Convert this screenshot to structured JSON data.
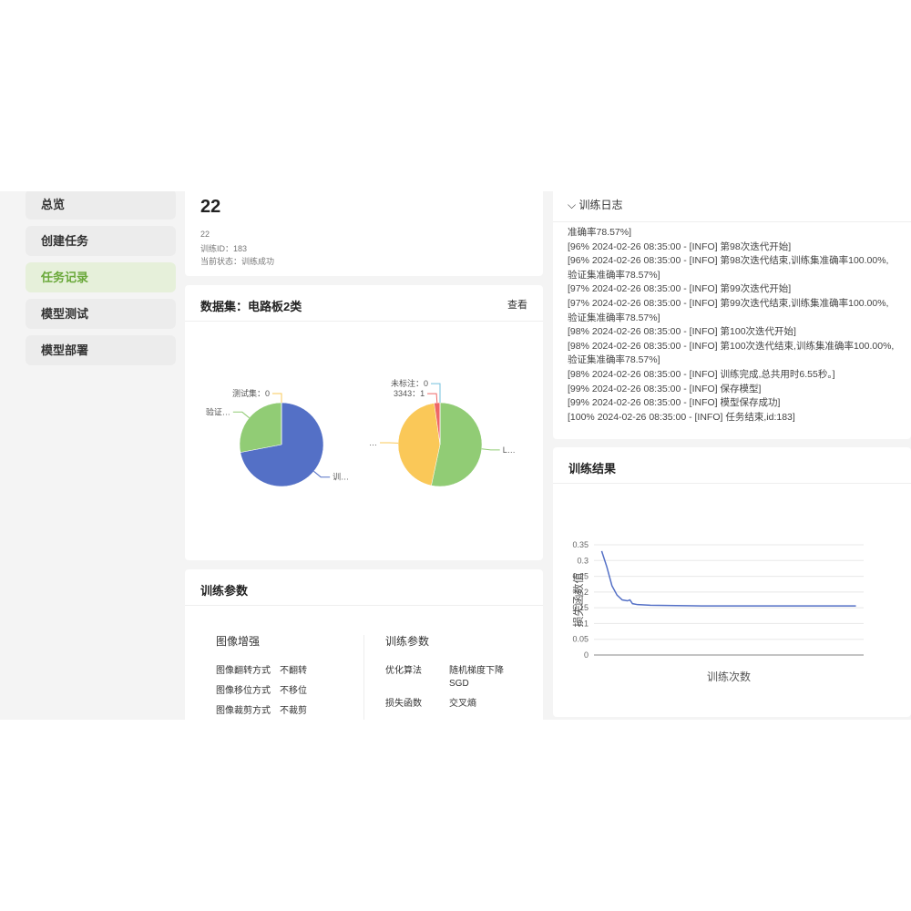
{
  "sidebar": {
    "items": [
      "总览",
      "创建任务",
      "任务记录",
      "模型测试",
      "模型部署"
    ],
    "active": 2
  },
  "task": {
    "title": "22",
    "name": "22",
    "id_line": "训练ID：183",
    "status_line": "当前状态：训练成功"
  },
  "dataset": {
    "title": "数据集：电路板2类",
    "link": "查看"
  },
  "log": {
    "title": "训练日志",
    "lines": [
      "准确率78.57%]",
      "[96% 2024-02-26 08:35:00 - [INFO] 第98次迭代开始]",
      "[96% 2024-02-26 08:35:00 - [INFO] 第98次迭代结束,训练集准确率100.00%,验证集准确率78.57%]",
      "[97% 2024-02-26 08:35:00 - [INFO] 第99次迭代开始]",
      "[97% 2024-02-26 08:35:00 - [INFO] 第99次迭代结束,训练集准确率100.00%,验证集准确率78.57%]",
      "[98% 2024-02-26 08:35:00 - [INFO] 第100次迭代开始]",
      "[98% 2024-02-26 08:35:00 - [INFO] 第100次迭代结束,训练集准确率100.00%,验证集准确率78.57%]",
      "[98% 2024-02-26 08:35:00 - [INFO] 训练完成,总共用时6.55秒。]",
      "[99% 2024-02-26 08:35:00 - [INFO] 保存模型]",
      "[99% 2024-02-26 08:35:00 - [INFO] 模型保存成功]",
      "[100% 2024-02-26 08:35:00 - [INFO] 任务结束,id:183]"
    ]
  },
  "params": {
    "title": "训练参数",
    "sections": [
      {
        "title": "图像增强",
        "rows": [
          [
            "图像翻转方式",
            "不翻转"
          ],
          [
            "图像移位方式",
            "不移位"
          ],
          [
            "图像裁剪方式",
            "不裁剪"
          ]
        ]
      },
      {
        "title": "训练参数",
        "rows": [
          [
            "优化算法",
            "随机梯度下降SGD"
          ],
          [
            "损失函数",
            "交叉熵"
          ]
        ]
      }
    ]
  },
  "chart_data": [
    {
      "type": "pie",
      "labels": [
        "训…",
        "验证…",
        "测试集：0"
      ],
      "values": [
        72,
        28,
        0
      ],
      "colors": [
        "#5470c6",
        "#91cc75",
        "#fac858"
      ]
    },
    {
      "type": "pie",
      "labels": [
        "L…",
        "…",
        "3343：1",
        "未标注：0"
      ],
      "values": [
        24,
        20,
        1,
        0
      ],
      "colors": [
        "#91cc75",
        "#fac858",
        "#ee6666",
        "#73c0de"
      ]
    },
    {
      "type": "line",
      "title": "训练结果",
      "xlabel": "训练次数",
      "ylabel": "损失函数值",
      "x": [
        1,
        3,
        5,
        7,
        9,
        11,
        12,
        13,
        15,
        20,
        30,
        40,
        50,
        60,
        70,
        80,
        90,
        100
      ],
      "values": [
        0.33,
        0.28,
        0.22,
        0.19,
        0.175,
        0.172,
        0.175,
        0.163,
        0.16,
        0.158,
        0.157,
        0.156,
        0.156,
        0.156,
        0.156,
        0.156,
        0.156,
        0.156
      ],
      "color": "#5470c6",
      "xlim": [
        -2,
        103
      ],
      "ylim": [
        0,
        0.35
      ],
      "yticks": [
        0,
        0.05,
        0.1,
        0.15,
        0.2,
        0.25,
        0.3,
        0.35
      ],
      "grid": true
    }
  ]
}
